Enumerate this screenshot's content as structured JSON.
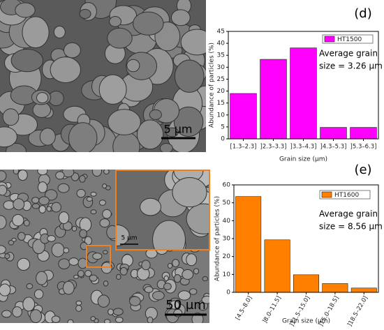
{
  "chart_data": [
    {
      "type": "bar",
      "panel_label": "(d)",
      "categories": [
        "[1.3–2.3]",
        "]2.3–3.3]",
        "]3.3–4.3]",
        "]4.3–5.3]",
        "]5.3–6.3]"
      ],
      "series": [
        {
          "name": "HT1500",
          "color": "#ff00ff",
          "values": [
            19,
            33.3,
            38.1,
            4.8,
            4.8
          ]
        }
      ],
      "ylim": [
        0,
        45
      ],
      "yticks": [
        0,
        5,
        10,
        15,
        20,
        25,
        30,
        35,
        40,
        45
      ],
      "y_label": "Abundance of particles (%)",
      "x_label": "Grain size (μm)",
      "annotation": [
        "Average grain",
        "size = 3.26 μm"
      ]
    },
    {
      "type": "bar",
      "panel_label": "(e)",
      "categories": [
        "[4.5–8.0]",
        "]8.0–11.5]",
        "]11.5–15.0]",
        "]15.0–18.5]",
        "]18.5–22.0]"
      ],
      "series": [
        {
          "name": "HT1600",
          "color": "#ff8000",
          "values": [
            53.5,
            29.3,
            9.8,
            4.9,
            2.4
          ]
        }
      ],
      "ylim": [
        0,
        60
      ],
      "yticks": [
        0,
        10,
        20,
        30,
        40,
        50,
        60
      ],
      "y_label": "Abundance of particles (%)",
      "x_label": "Grain size (μm)",
      "annotation": [
        "Average grain",
        "size = 8.56 μm"
      ]
    }
  ],
  "images": [
    {
      "scale_bar": "5 μm"
    },
    {
      "scale_bar": "50 μm",
      "inset_scale_bar": "5 μm"
    }
  ]
}
